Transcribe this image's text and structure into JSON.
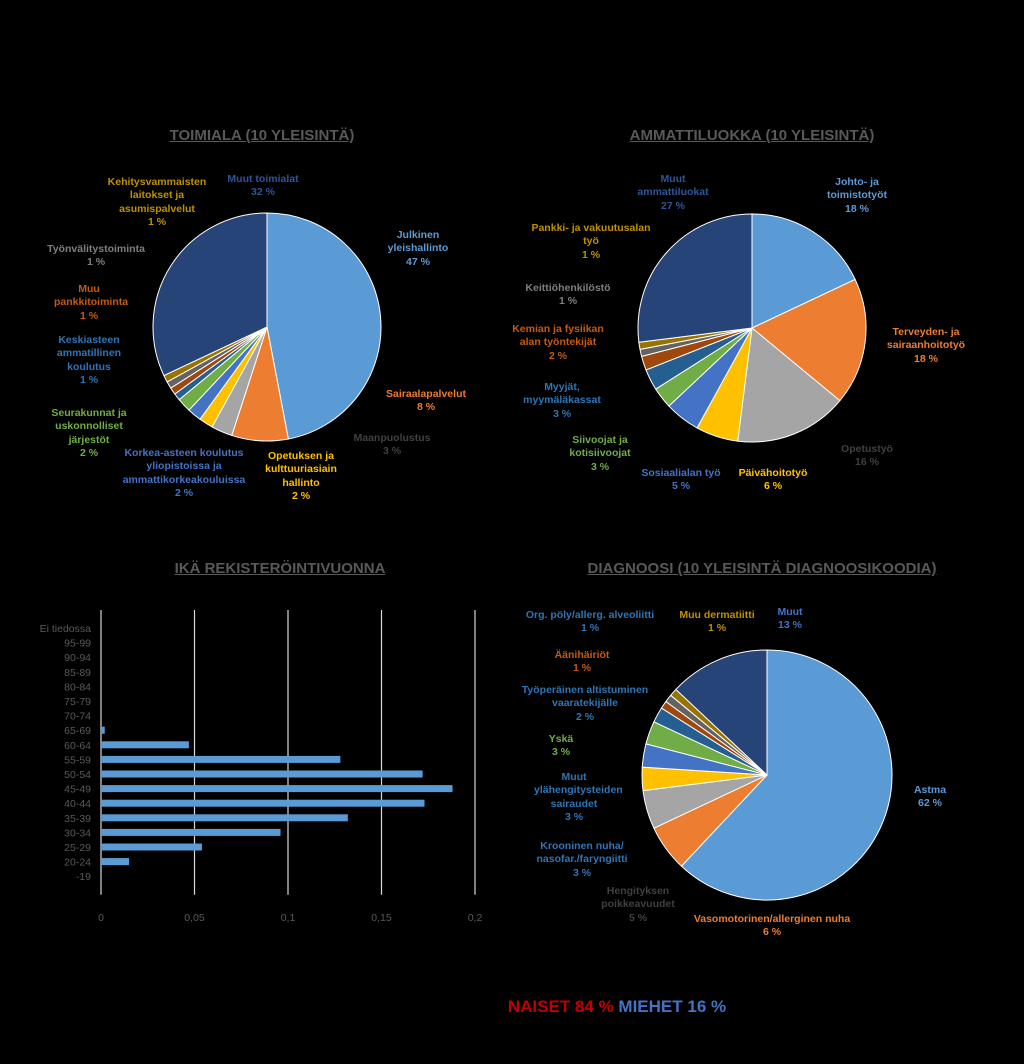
{
  "colors": {
    "blue": "#5b9bd5",
    "orange": "#ed7d31",
    "gray": "#a5a5a5",
    "yellow": "#ffc000",
    "dblue": "#4472c4",
    "green": "#70ad47",
    "navy": "#264478",
    "brown": "#9e480e",
    "dgray": "#636363",
    "olive": "#997300",
    "muted": "#43682b"
  },
  "footer": {
    "women": "NAISET 84 %",
    "men": "MIEHET 16 %"
  },
  "chart_data": [
    {
      "type": "pie",
      "title": "TOIMIALA (10 YLEISINTÄ)",
      "slices": [
        {
          "label": "Julkinen yleishallinto",
          "value": 47,
          "display": "47 %",
          "color": "#5b9bd5"
        },
        {
          "label": "Sairaalapalvelut",
          "value": 8,
          "display": "8 %",
          "color": "#ed7d31"
        },
        {
          "label": "Maanpuolustus",
          "value": 3,
          "display": "3 %",
          "color": "#a5a5a5"
        },
        {
          "label": "Opetuksen ja kulttuuriasiain hallinto",
          "value": 2,
          "display": "2 %",
          "color": "#ffc000"
        },
        {
          "label": "Korkea-asteen koulutus yliopistoissa ja ammattikorkeakouluissa",
          "value": 2,
          "display": "2 %",
          "color": "#4472c4"
        },
        {
          "label": "Seurakunnat ja uskonnolliset järjestöt",
          "value": 2,
          "display": "2 %",
          "color": "#70ad47"
        },
        {
          "label": "Keskiasteen ammatillinen koulutus",
          "value": 1,
          "display": "1 %",
          "color": "#255e91"
        },
        {
          "label": "Muu pankkitoiminta",
          "value": 1,
          "display": "1 %",
          "color": "#9e480e"
        },
        {
          "label": "Työnvälitystoiminta",
          "value": 1,
          "display": "1 %",
          "color": "#636363"
        },
        {
          "label": "Kehitysvammaisten laitokset ja asumispalvelut",
          "value": 1,
          "display": "1 %",
          "color": "#997300"
        },
        {
          "label": "Muut toimialat",
          "value": 32,
          "display": "32 %",
          "color": "#264478"
        }
      ]
    },
    {
      "type": "pie",
      "title": "AMMATTILUOKKA (10 YLEISINTÄ)",
      "slices": [
        {
          "label": "Johto- ja toimistotyöt",
          "value": 18,
          "display": "18 %",
          "color": "#5b9bd5"
        },
        {
          "label": "Terveyden- ja sairaanhoitotyö",
          "value": 18,
          "display": "18 %",
          "color": "#ed7d31"
        },
        {
          "label": "Opetustyö",
          "value": 16,
          "display": "16 %",
          "color": "#a5a5a5"
        },
        {
          "label": "Päivähoitotyö",
          "value": 6,
          "display": "6 %",
          "color": "#ffc000"
        },
        {
          "label": "Sosiaalialan työ",
          "value": 5,
          "display": "5 %",
          "color": "#4472c4"
        },
        {
          "label": "Siivoojat ja kotisiivoojat",
          "value": 3,
          "display": "3 %",
          "color": "#70ad47"
        },
        {
          "label": "Myyjät, myymäläkassat",
          "value": 3,
          "display": "3 %",
          "color": "#255e91"
        },
        {
          "label": "Kemian ja fysiikan alan työntekijät",
          "value": 2,
          "display": "2 %",
          "color": "#9e480e"
        },
        {
          "label": "Keittiöhenkilöstö",
          "value": 1,
          "display": "1 %",
          "color": "#636363"
        },
        {
          "label": "Pankki- ja vakuutusalan työ",
          "value": 1,
          "display": "1 %",
          "color": "#997300"
        },
        {
          "label": "Muut ammattiluokat",
          "value": 27,
          "display": "27 %",
          "color": "#264478"
        }
      ]
    },
    {
      "type": "bar",
      "orientation": "horizontal",
      "title": "IKÄ REKISTERÖINTIVUONNA",
      "categories": [
        "Ei tiedossa",
        "95-99",
        "90-94",
        "85-89",
        "80-84",
        "75-79",
        "70-74",
        "65-69",
        "60-64",
        "55-59",
        "50-54",
        "45-49",
        "40-44",
        "35-39",
        "30-34",
        "25-29",
        "20-24",
        "-19"
      ],
      "values": [
        0,
        0,
        0,
        0,
        0,
        0,
        0,
        0.002,
        0.047,
        0.128,
        0.172,
        0.188,
        0.173,
        0.132,
        0.096,
        0.054,
        0.015,
        0
      ],
      "xticks": [
        "0",
        "0,05",
        "0,1",
        "0,15",
        "0,2"
      ],
      "xlim": [
        0,
        0.2
      ],
      "color": "#5b9bd5"
    },
    {
      "type": "pie",
      "title": "DIAGNOOSI (10 YLEISINTÄ DIAGNOOSIKOODIA)",
      "slices": [
        {
          "label": "Astma",
          "value": 62,
          "display": "62 %",
          "color": "#5b9bd5"
        },
        {
          "label": "Vasomotorinen/allerginen nuha",
          "value": 6,
          "display": "6 %",
          "color": "#ed7d31"
        },
        {
          "label": "Hengityksen poikkeavuudet",
          "value": 5,
          "display": "5 %",
          "color": "#a5a5a5"
        },
        {
          "label": "Krooninen nuha/ nasofar./faryngiitti",
          "value": 3,
          "display": "3 %",
          "color": "#ffc000"
        },
        {
          "label": "Muut ylähengitysteiden sairaudet",
          "value": 3,
          "display": "3 %",
          "color": "#4472c4"
        },
        {
          "label": "Yskä",
          "value": 3,
          "display": "3 %",
          "color": "#70ad47"
        },
        {
          "label": "Työperäinen altistuminen vaaratekijälle",
          "value": 2,
          "display": "2 %",
          "color": "#255e91"
        },
        {
          "label": "Äänihäiriöt",
          "value": 1,
          "display": "1 %",
          "color": "#9e480e"
        },
        {
          "label": "Org. pöly/allerg. alveoliitti",
          "value": 1,
          "display": "1 %",
          "color": "#636363"
        },
        {
          "label": "Muu dermatiitti",
          "value": 1,
          "display": "1 %",
          "color": "#997300"
        },
        {
          "label": "Muut",
          "value": 13,
          "display": "13 %",
          "color": "#264478"
        }
      ]
    }
  ]
}
